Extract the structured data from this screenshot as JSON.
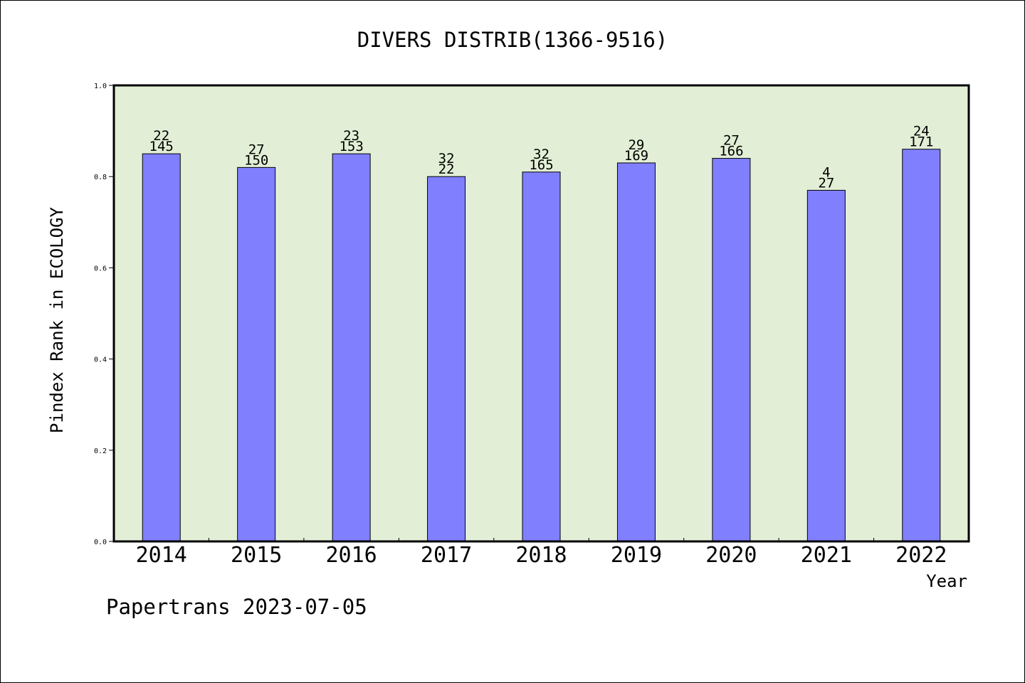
{
  "chart_data": {
    "type": "bar",
    "title": "DIVERS DISTRIB(1366-9516)",
    "xlabel": "Year",
    "ylabel": "Pindex Rank in ECOLOGY",
    "categories": [
      "2014",
      "2015",
      "2016",
      "2017",
      "2018",
      "2019",
      "2020",
      "2021",
      "2022"
    ],
    "values": [
      0.85,
      0.82,
      0.85,
      0.8,
      0.81,
      0.83,
      0.84,
      0.77,
      0.86
    ],
    "labels_top": [
      "22",
      "27",
      "23",
      "32",
      "32",
      "29",
      "27",
      "4",
      "24"
    ],
    "labels_bottom": [
      "145",
      "150",
      "153",
      "22",
      "165",
      "169",
      "166",
      "27",
      "171"
    ],
    "ylim": [
      0,
      1
    ],
    "yticks": [
      "0.0",
      "0.2",
      "0.4",
      "0.6",
      "0.8",
      "1.0"
    ],
    "grid": false,
    "colors": {
      "bar": "#8080ff",
      "plot_background": "#e2efd6",
      "axes": "#000000"
    }
  },
  "footer": {
    "text": "Papertrans 2023-07-05"
  }
}
